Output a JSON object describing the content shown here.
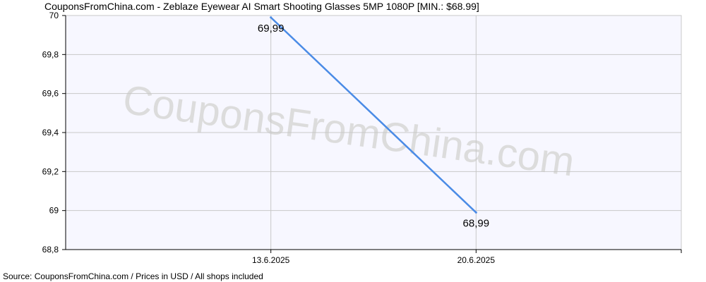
{
  "chart_data": {
    "type": "line",
    "title": "CouponsFromChina.com - Zeblaze Eyewear AI Smart Shooting Glasses 5MP 1080P [MIN.: $68.99]",
    "footer": "Source: CouponsFromChina.com / Prices in USD / All shops included",
    "watermark": "CouponsFromChina.com",
    "xlabel": "",
    "ylabel": "",
    "categories": [
      "13.6.2025",
      "20.6.2025"
    ],
    "series": [
      {
        "values": [
          69.99,
          68.99
        ],
        "value_labels": [
          "69,99",
          "68,99"
        ],
        "color": "#4a8be6"
      }
    ],
    "ylim": [
      68.8,
      70
    ],
    "yticks": [
      68.8,
      69,
      69.2,
      69.4,
      69.6,
      69.8,
      70
    ],
    "ytick_labels": [
      "68,8",
      "69",
      "69,2",
      "69,4",
      "69,6",
      "69,8",
      "70"
    ],
    "grid": true,
    "legend": "none",
    "plot_background": "#f7f7ff",
    "grid_color": "#c8c8c8"
  }
}
